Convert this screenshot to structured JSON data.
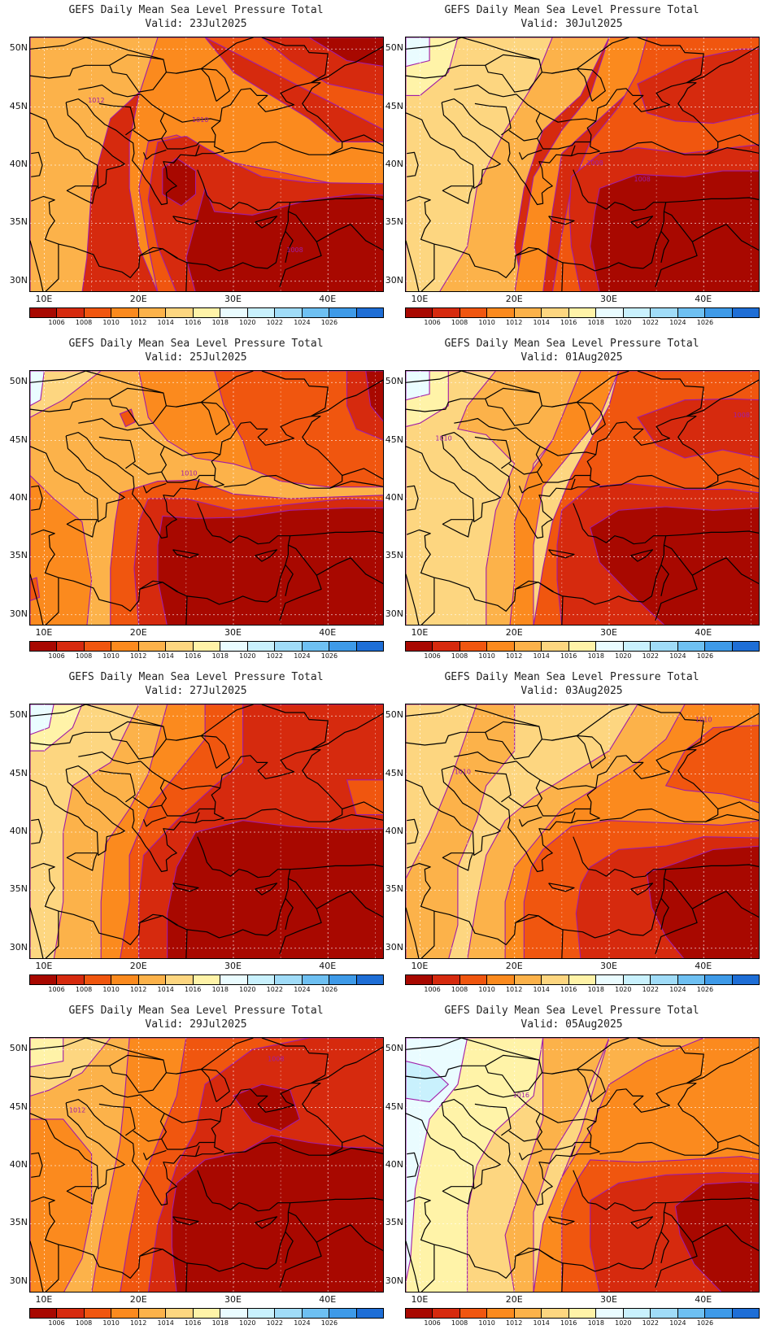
{
  "colorbar": {
    "labels": [
      "1006",
      "1008",
      "1010",
      "1012",
      "1014",
      "1016",
      "1018",
      "1020",
      "1022",
      "1024",
      "1026"
    ],
    "colors": [
      "#a80800",
      "#d62a0e",
      "#f0560f",
      "#fb8a1e",
      "#fcb24a",
      "#fdd680",
      "#fff3a8",
      "#eafcff",
      "#c9f1fd",
      "#a0dcf8",
      "#6ec0f2",
      "#3e9ae8",
      "#1e6ed6"
    ]
  },
  "axes": {
    "lat_labels": [
      "50N",
      "45N",
      "40N",
      "35N",
      "30N"
    ],
    "lon_labels": [
      "10E",
      "20E",
      "30E",
      "40E"
    ]
  },
  "panels": [
    {
      "title": "GEFS Daily Mean Sea Level Pressure Total",
      "valid": "Valid: 23Jul2025",
      "contour_labels": [
        {
          "text": "1012",
          "lat": 45.4,
          "lon": 15.5
        },
        {
          "text": "1010",
          "lat": 43.7,
          "lon": 26.5
        },
        {
          "text": "1008",
          "lat": 32.5,
          "lon": 36.5
        }
      ]
    },
    {
      "title": "GEFS Daily Mean Sea Level Pressure Total",
      "valid": "Valid: 30Jul2025",
      "contour_labels": [
        {
          "text": "1008",
          "lat": 40.0,
          "lon": 28.5
        },
        {
          "text": "1008",
          "lat": 38.6,
          "lon": 33.5
        }
      ]
    },
    {
      "title": "GEFS Daily Mean Sea Level Pressure Total",
      "valid": "Valid: 25Jul2025",
      "contour_labels": [
        {
          "text": "1010",
          "lat": 42.0,
          "lon": 25.3
        }
      ]
    },
    {
      "title": "GEFS Daily Mean Sea Level Pressure Total",
      "valid": "Valid: 01Aug2025",
      "contour_labels": [
        {
          "text": "1010",
          "lat": 45.0,
          "lon": 12.5
        },
        {
          "text": "1008",
          "lat": 47.0,
          "lon": 44.0
        }
      ]
    },
    {
      "title": "GEFS Daily Mean Sea Level Pressure Total",
      "valid": "Valid: 27Jul2025",
      "contour_labels": []
    },
    {
      "title": "GEFS Daily Mean Sea Level Pressure Total",
      "valid": "Valid: 03Aug2025",
      "contour_labels": [
        {
          "text": "1010",
          "lat": 49.5,
          "lon": 40.0
        },
        {
          "text": "1010",
          "lat": 45.0,
          "lon": 14.5
        }
      ]
    },
    {
      "title": "GEFS Daily Mean Sea Level Pressure Total",
      "valid": "Valid: 29Jul2025",
      "contour_labels": [
        {
          "text": "1012",
          "lat": 44.6,
          "lon": 13.5
        },
        {
          "text": "1008",
          "lat": 49.0,
          "lon": 34.5
        }
      ]
    },
    {
      "title": "GEFS Daily Mean Sea Level Pressure Total",
      "valid": "Valid: 05Aug2025",
      "contour_labels": [
        {
          "text": "1016",
          "lat": 45.9,
          "lon": 20.7
        }
      ]
    }
  ]
}
